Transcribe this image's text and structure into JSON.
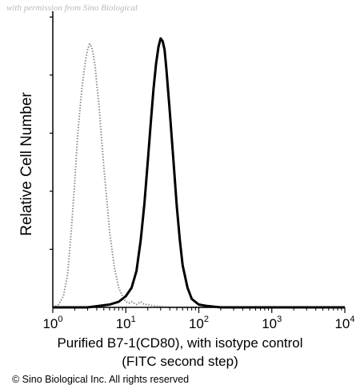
{
  "watermark": "with permission from Sino Biological",
  "copyright": "© Sino Biological Inc. All rights reserved",
  "chart_data": {
    "type": "histogram",
    "ylabel": "Relative Cell Number",
    "xlabel_line1": "Purified B7-1(CD80), with isotype control",
    "xlabel_line2": "(FITC second step)",
    "x_scale": "log",
    "xlim": [
      1,
      10000
    ],
    "x_ticks": [
      {
        "value": 1,
        "base": "10",
        "exp": "0"
      },
      {
        "value": 10,
        "base": "10",
        "exp": "1"
      },
      {
        "value": 100,
        "base": "10",
        "exp": "2"
      },
      {
        "value": 1000,
        "base": "10",
        "exp": "3"
      },
      {
        "value": 10000,
        "base": "10",
        "exp": "4"
      }
    ],
    "ylim": [
      0,
      100
    ],
    "grid": false,
    "series": [
      {
        "style": "dotted",
        "color": "#8c8c8c",
        "x": [
          1.0,
          1.2,
          1.4,
          1.6,
          1.8,
          2.0,
          2.2,
          2.5,
          2.8,
          3.0,
          3.2,
          3.4,
          3.6,
          3.8,
          4.0,
          4.3,
          4.6,
          5.0,
          5.5,
          6.0,
          7.0,
          8.0,
          9.0,
          10.0,
          11.0,
          12.0,
          14.0,
          16.0,
          18.0,
          20.0,
          25.0,
          30.0,
          40.0,
          60.0,
          100.0,
          1000.0,
          10000.0
        ],
        "y": [
          0,
          1,
          4,
          12,
          28,
          45,
          62,
          78,
          88,
          92,
          94,
          93,
          90,
          86,
          80,
          72,
          62,
          50,
          38,
          27,
          14,
          7,
          4,
          2,
          1.5,
          2,
          1,
          2,
          1,
          1,
          0.5,
          0.3,
          0,
          0,
          0,
          0,
          0
        ]
      },
      {
        "style": "solid",
        "color": "#000000",
        "x": [
          1.0,
          3.0,
          6.0,
          8.0,
          10.0,
          12.0,
          14.0,
          16.0,
          18.0,
          20.0,
          22.0,
          24.0,
          26.0,
          28.0,
          30.0,
          32.0,
          34.0,
          36.0,
          40.0,
          45.0,
          50.0,
          55.0,
          60.0,
          70.0,
          80.0,
          100.0,
          130.0,
          200.0,
          1000.0,
          10000.0
        ],
        "y": [
          0,
          0,
          1,
          2,
          4,
          7,
          13,
          24,
          37,
          52,
          66,
          78,
          87,
          93,
          96,
          95,
          92,
          85,
          70,
          52,
          36,
          24,
          15,
          7,
          3,
          1,
          0.5,
          0,
          0,
          0
        ]
      }
    ]
  }
}
